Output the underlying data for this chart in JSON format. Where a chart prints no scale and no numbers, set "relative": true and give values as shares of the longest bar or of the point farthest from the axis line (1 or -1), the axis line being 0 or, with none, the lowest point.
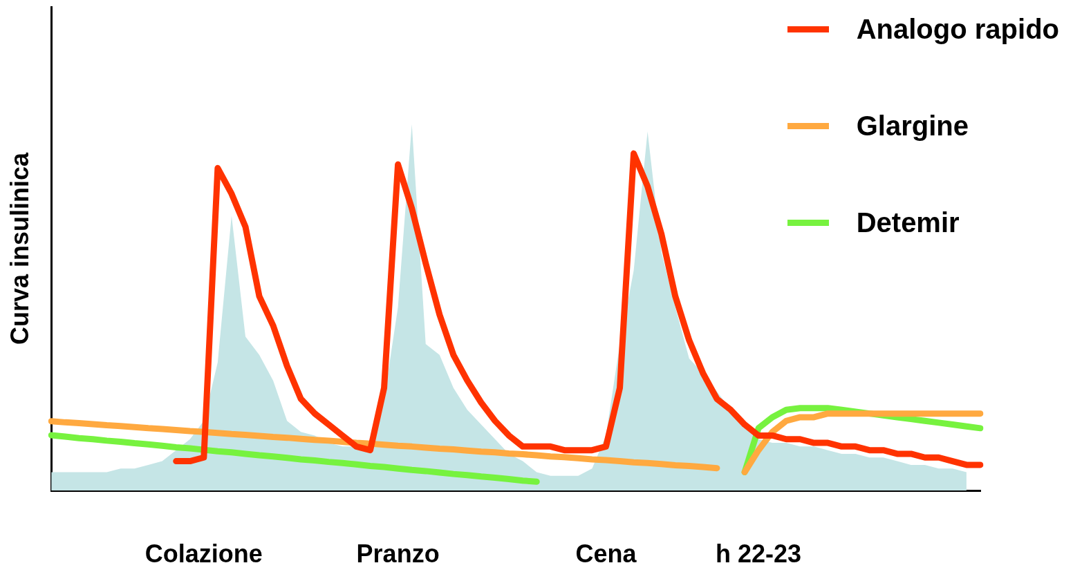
{
  "chart_data": {
    "type": "line",
    "ylabel": "Curva insulinica",
    "relative": true,
    "legend": "top right",
    "grid": false,
    "marker": "none",
    "categories": [
      null,
      null,
      null,
      null,
      null,
      null,
      null,
      null,
      null,
      null,
      null,
      "Colazione",
      null,
      null,
      null,
      null,
      null,
      null,
      null,
      null,
      null,
      null,
      null,
      null,
      null,
      "Pranzo",
      null,
      null,
      null,
      null,
      null,
      null,
      null,
      null,
      null,
      null,
      null,
      null,
      null,
      null,
      "Cena",
      null,
      null,
      null,
      null,
      null,
      null,
      null,
      null,
      null,
      null,
      "h 22-23",
      null,
      null,
      null,
      null,
      null,
      null,
      null,
      null,
      null,
      null,
      null,
      null,
      null,
      null,
      null,
      null
    ],
    "series": [
      {
        "type": "area",
        "color": "#c5e5e6",
        "values": [
          0.05,
          0.05,
          0.05,
          0.05,
          0.05,
          0.06,
          0.06,
          0.07,
          0.08,
          0.11,
          0.14,
          0.19,
          0.35,
          0.75,
          0.42,
          0.37,
          0.3,
          0.19,
          0.16,
          0.15,
          0.13,
          0.12,
          0.12,
          0.13,
          0.25,
          0.5,
          1.0,
          0.4,
          0.37,
          0.28,
          0.22,
          0.18,
          0.14,
          0.1,
          0.08,
          0.05,
          0.04,
          0.04,
          0.04,
          0.06,
          0.15,
          0.4,
          0.6,
          0.98,
          0.65,
          0.5,
          0.36,
          0.32,
          0.27,
          0.22,
          0.17,
          0.14,
          0.13,
          0.13,
          0.12,
          0.12,
          0.11,
          0.1,
          0.1,
          0.09,
          0.09,
          0.08,
          0.07,
          0.07,
          0.06,
          0.06,
          0.05,
          null
        ]
      },
      {
        "type": "line",
        "name": "Analogo rapido",
        "color": "#ff3300",
        "values": [
          null,
          null,
          null,
          null,
          null,
          null,
          null,
          null,
          null,
          0.08,
          0.08,
          0.09,
          0.88,
          0.81,
          0.72,
          0.53,
          0.45,
          0.34,
          0.25,
          0.21,
          0.18,
          0.15,
          0.12,
          0.11,
          0.28,
          0.89,
          0.77,
          0.62,
          0.48,
          0.37,
          0.3,
          0.24,
          0.19,
          0.15,
          0.12,
          0.12,
          0.12,
          0.11,
          0.11,
          0.11,
          0.12,
          0.28,
          0.92,
          0.83,
          0.7,
          0.53,
          0.41,
          0.32,
          0.25,
          0.22,
          0.18,
          0.15,
          0.15,
          0.14,
          0.14,
          0.13,
          0.13,
          0.12,
          0.12,
          0.11,
          0.11,
          0.1,
          0.1,
          0.09,
          0.09,
          0.08,
          0.07,
          0.07
        ]
      },
      {
        "type": "line",
        "name": "Glargine",
        "color": "#ffa940",
        "values": [
          0.189,
          0.186,
          0.184,
          0.181,
          0.178,
          0.176,
          0.173,
          0.17,
          0.168,
          0.165,
          0.162,
          0.16,
          0.157,
          0.154,
          0.152,
          0.149,
          0.146,
          0.144,
          0.141,
          0.138,
          0.136,
          0.133,
          0.13,
          0.128,
          0.125,
          0.122,
          0.12,
          0.117,
          0.114,
          0.112,
          0.109,
          0.106,
          0.104,
          0.101,
          0.099,
          0.096,
          0.093,
          0.091,
          0.088,
          0.085,
          0.083,
          0.08,
          0.077,
          0.075,
          0.072,
          0.069,
          0.067,
          0.064,
          0.061,
          null,
          0.05,
          0.11,
          0.16,
          0.19,
          0.2,
          0.2,
          0.21,
          0.21,
          0.21,
          0.21,
          0.21,
          0.21,
          0.21,
          0.21,
          0.21,
          0.21,
          0.21,
          0.21
        ]
      },
      {
        "type": "line",
        "name": "Detemir",
        "color": "#77f23f",
        "values": [
          0.151,
          0.147,
          0.143,
          0.14,
          0.136,
          0.133,
          0.129,
          0.126,
          0.122,
          0.118,
          0.115,
          0.111,
          0.107,
          0.104,
          0.1,
          0.096,
          0.093,
          0.089,
          0.085,
          0.082,
          0.078,
          0.075,
          0.071,
          0.067,
          0.064,
          0.06,
          0.056,
          0.053,
          0.049,
          0.045,
          0.042,
          0.038,
          0.035,
          0.031,
          0.027,
          0.024,
          null,
          null,
          null,
          null,
          null,
          null,
          null,
          null,
          null,
          null,
          null,
          null,
          null,
          null,
          0.05,
          0.17,
          0.2,
          0.22,
          0.225,
          0.225,
          0.225,
          0.22,
          0.215,
          0.21,
          0.205,
          0.2,
          0.195,
          0.19,
          0.185,
          0.18,
          0.175,
          0.17
        ]
      }
    ]
  }
}
